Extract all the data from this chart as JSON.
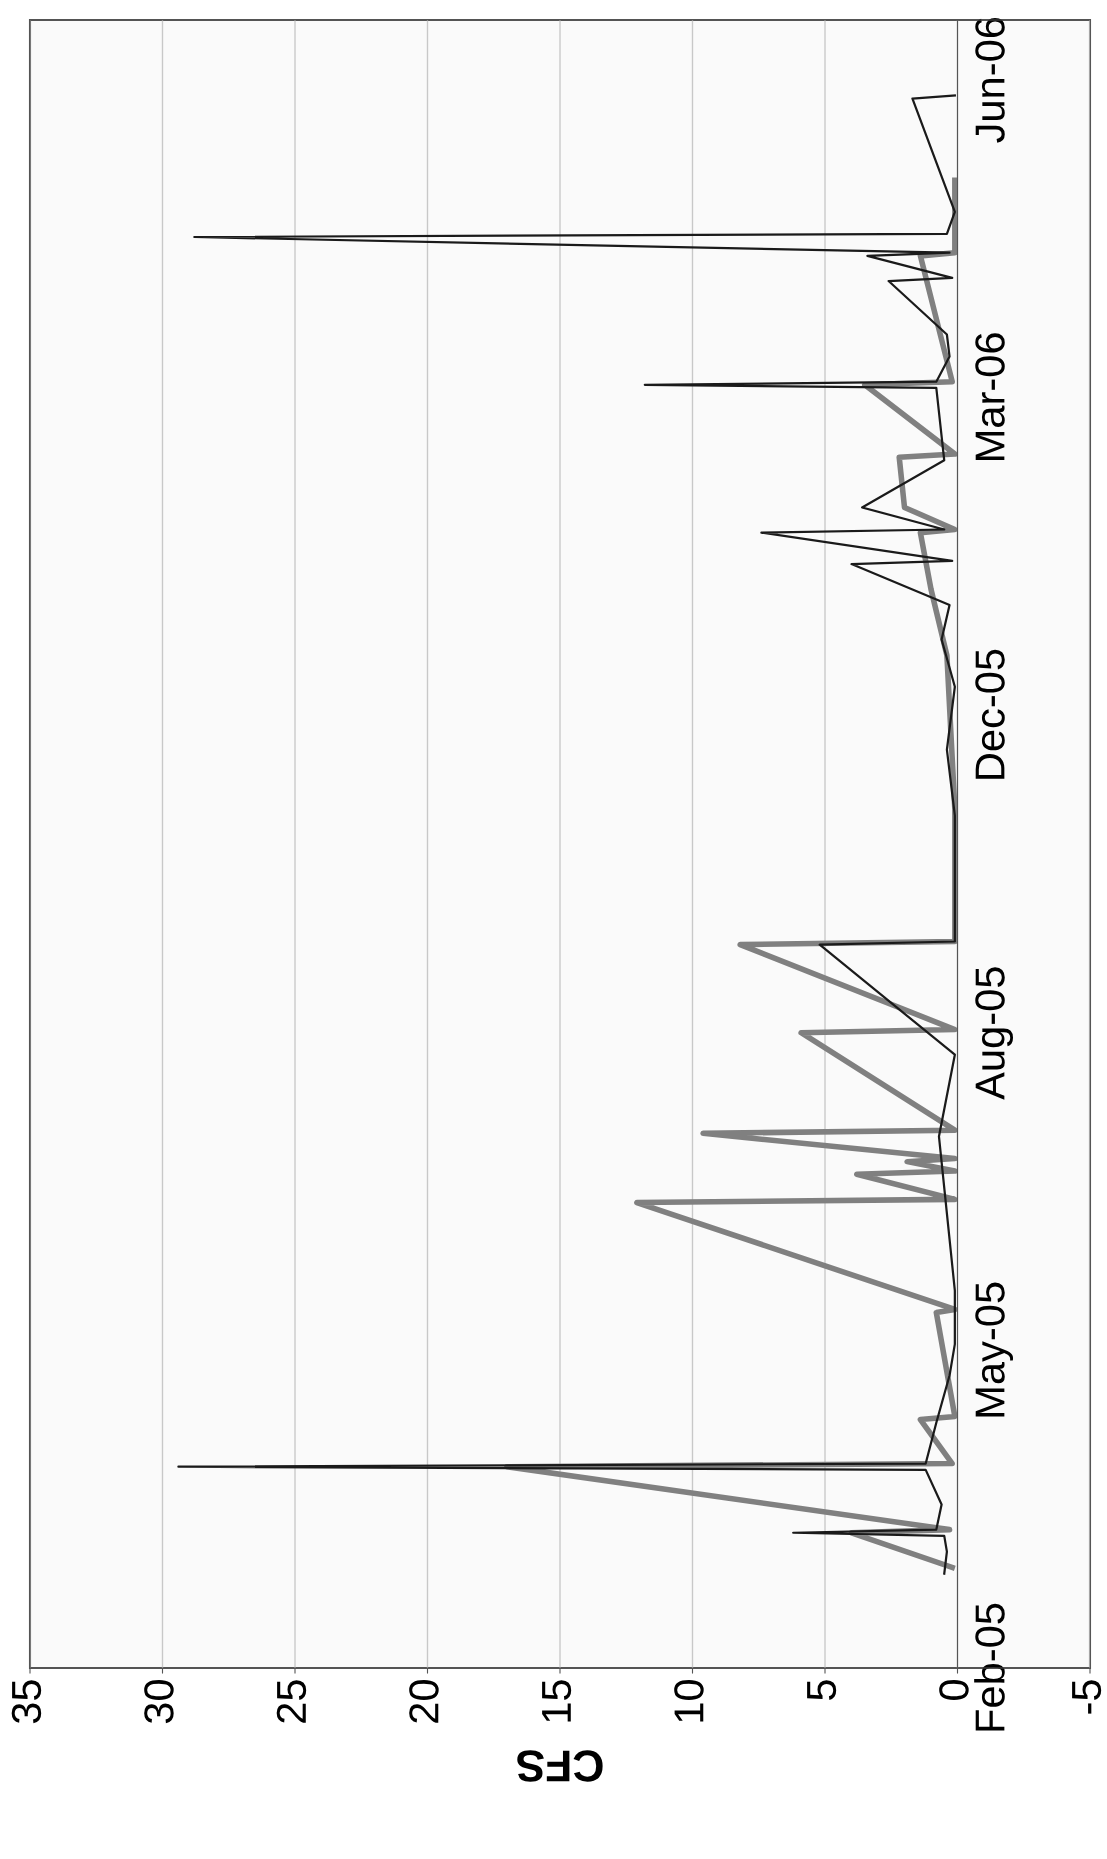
{
  "chart_data": {
    "type": "line",
    "orientation": "horizontal",
    "xlabel": "CFS",
    "xlim": [
      35,
      -5
    ],
    "xticks": [
      35,
      30,
      25,
      20,
      15,
      10,
      5,
      0,
      -5
    ],
    "ylim": [
      "2005-02-01",
      "2006-07-10"
    ],
    "yticks": [
      {
        "value": "2005-02-01",
        "label": "Feb-05"
      },
      {
        "value": "2005-05-13",
        "label": "May-05"
      },
      {
        "value": "2005-08-22",
        "label": "Aug-05"
      },
      {
        "value": "2005-12-01",
        "label": "Dec-05"
      },
      {
        "value": "2006-03-12",
        "label": "Mar-06"
      },
      {
        "value": "2006-06-21",
        "label": "Jun-06"
      }
    ],
    "grid": "x",
    "series": [
      {
        "color": "#808080",
        "x": [
          "2005-03-05",
          "2005-03-16",
          "2005-03-17",
          "2005-04-06",
          "2005-04-07",
          "2005-04-21",
          "2005-04-22",
          "2005-05-25",
          "2005-05-26",
          "2005-06-29",
          "2005-06-30",
          "2005-07-08",
          "2005-07-09",
          "2005-07-12",
          "2005-07-13",
          "2005-07-21",
          "2005-07-22",
          "2005-08-22",
          "2005-08-23",
          "2005-09-19",
          "2005-09-20",
          "2005-11-01",
          "2005-12-20",
          "2006-01-10",
          "2006-01-28",
          "2006-01-29",
          "2006-02-05",
          "2006-02-21",
          "2006-02-22",
          "2006-03-16",
          "2006-03-17",
          "2006-04-26",
          "2006-04-27",
          "2006-05-20"
        ],
        "values": [
          0.2,
          4.0,
          0.3,
          17.0,
          0.2,
          1.4,
          0.1,
          0.8,
          0.1,
          12.1,
          0.1,
          3.8,
          0.1,
          1.9,
          0.1,
          9.6,
          0.1,
          5.9,
          0.1,
          8.2,
          0.1,
          0.1,
          0.4,
          1.0,
          1.4,
          0.1,
          2.0,
          2.2,
          0.1,
          3.5,
          0.2,
          1.4,
          0.1,
          0.1
        ]
      },
      {
        "color": "#1a1a1a",
        "x": [
          "2005-03-03",
          "2005-03-10",
          "2005-03-15",
          "2005-03-16",
          "2005-03-17",
          "2005-03-25",
          "2005-04-05",
          "2005-04-06",
          "2005-04-07",
          "2005-04-20",
          "2005-05-05",
          "2005-05-15",
          "2005-06-01",
          "2005-07-20",
          "2005-08-15",
          "2005-09-19",
          "2005-09-20",
          "2005-10-30",
          "2005-11-20",
          "2005-12-10",
          "2005-12-25",
          "2006-01-05",
          "2006-01-18",
          "2006-01-19",
          "2006-01-28",
          "2006-01-29",
          "2006-02-05",
          "2006-02-20",
          "2006-03-15",
          "2006-03-16",
          "2006-03-17",
          "2006-03-25",
          "2006-04-01",
          "2006-04-18",
          "2006-04-19",
          "2006-04-26",
          "2006-04-27",
          "2006-05-02",
          "2006-05-03",
          "2006-05-10",
          "2006-06-15",
          "2006-06-16"
        ],
        "values": [
          0.5,
          0.4,
          0.5,
          6.2,
          0.8,
          0.6,
          1.2,
          29.4,
          1.2,
          0.8,
          0.3,
          0.1,
          0.1,
          0.7,
          0.1,
          5.2,
          0.1,
          0.1,
          0.4,
          0.1,
          0.6,
          0.3,
          4.0,
          0.2,
          7.4,
          0.5,
          3.6,
          0.5,
          0.8,
          11.8,
          0.8,
          0.3,
          0.4,
          2.6,
          0.2,
          3.4,
          0.3,
          28.8,
          0.4,
          0.1,
          1.7,
          0.1
        ]
      }
    ]
  }
}
